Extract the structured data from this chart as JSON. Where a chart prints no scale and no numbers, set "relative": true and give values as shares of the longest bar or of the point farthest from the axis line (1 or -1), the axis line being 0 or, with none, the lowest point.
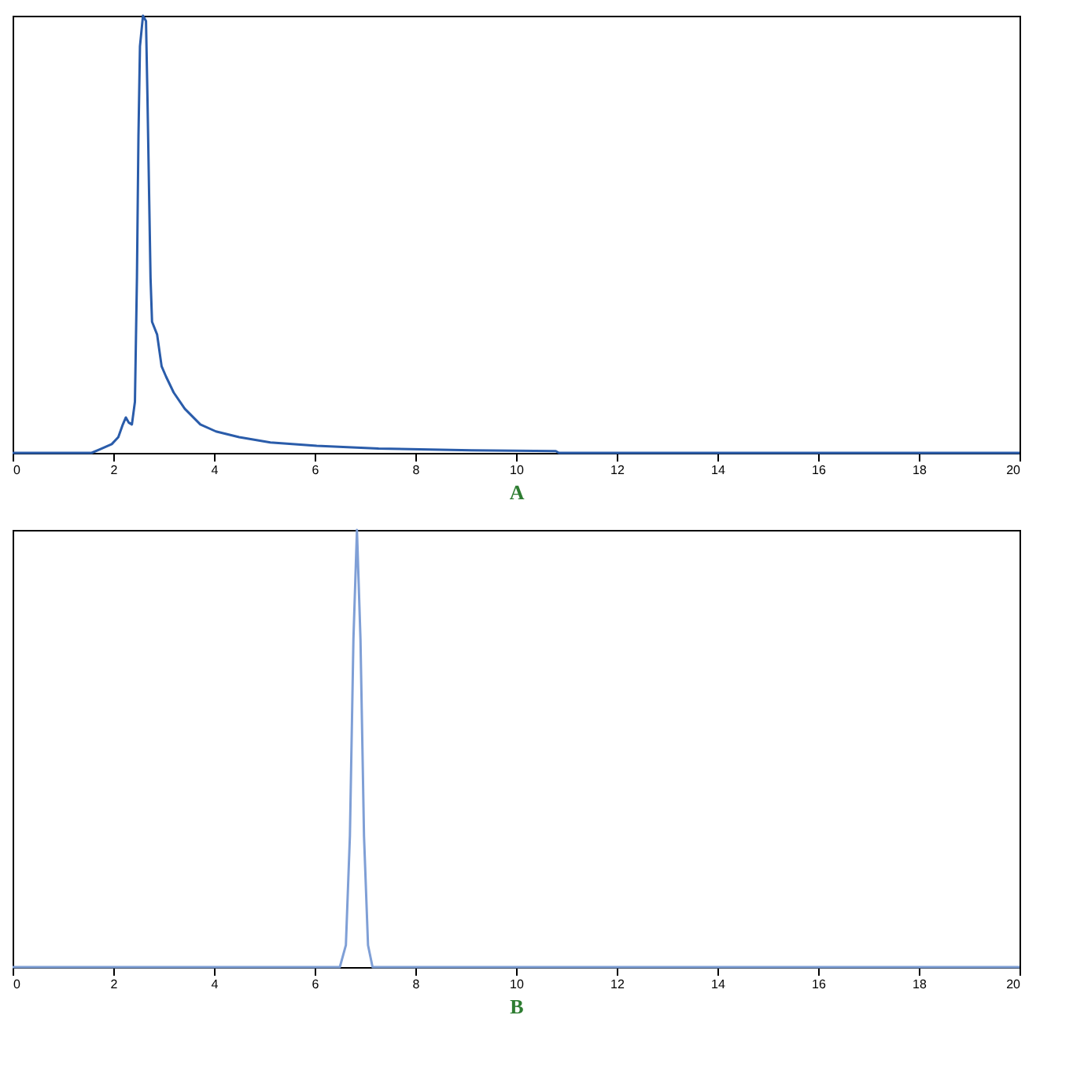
{
  "chart_data": [
    {
      "type": "line",
      "xlabel": "A",
      "relative": true,
      "xlim": [
        0,
        20
      ],
      "xticks": [
        0,
        2,
        4,
        6,
        8,
        10,
        12,
        14,
        16,
        18,
        20
      ],
      "grid": false,
      "x": [
        0,
        1.57,
        1.73,
        1.97,
        2.1,
        2.19,
        2.25,
        2.31,
        2.37,
        2.43,
        2.47,
        2.5,
        2.53,
        2.59,
        2.65,
        2.68,
        2.74,
        2.77,
        2.87,
        2.96,
        3.05,
        3.2,
        3.42,
        3.73,
        4.04,
        4.5,
        5.12,
        6.04,
        7.27,
        9.12,
        10.79,
        10.85,
        20
      ],
      "series": [
        {
          "color": "#2a5caa",
          "values": [
            0,
            0,
            0.008,
            0.02,
            0.036,
            0.065,
            0.081,
            0.069,
            0.065,
            0.117,
            0.4,
            0.725,
            0.93,
            1,
            0.988,
            0.806,
            0.4,
            0.3,
            0.271,
            0.198,
            0.174,
            0.138,
            0.101,
            0.065,
            0.049,
            0.036,
            0.024,
            0.016,
            0.01,
            0.006,
            0.004,
            0,
            0
          ]
        }
      ]
    },
    {
      "type": "line",
      "xlabel": "B",
      "relative": true,
      "xlim": [
        0,
        20
      ],
      "xticks": [
        0,
        2,
        4,
        6,
        8,
        10,
        12,
        14,
        16,
        18,
        20
      ],
      "grid": false,
      "x": [
        0,
        6.5,
        6.62,
        6.7,
        6.77,
        6.84,
        6.91,
        6.98,
        7.06,
        7.15,
        20
      ],
      "series": [
        {
          "color": "#7f9fd6",
          "values": [
            0,
            0,
            0.05,
            0.3,
            0.75,
            1,
            0.75,
            0.3,
            0.05,
            0,
            0
          ]
        }
      ]
    }
  ]
}
